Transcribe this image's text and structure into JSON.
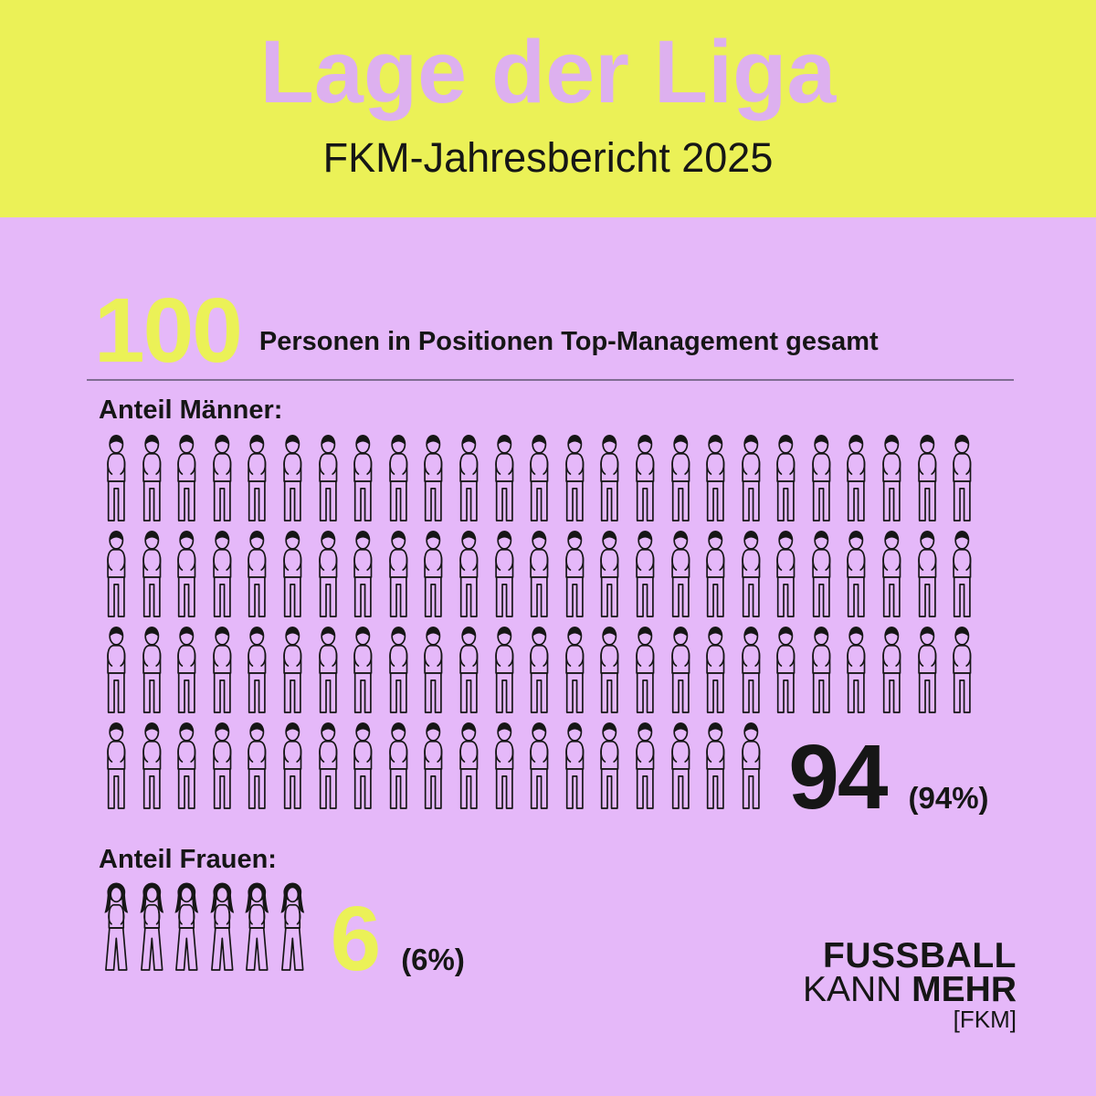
{
  "banner": {
    "title": "Lage der Liga",
    "subtitle": "FKM-Jahresbericht 2025"
  },
  "colors": {
    "banner_yellow": "#EBF157",
    "background_lavender": "#E5B8F9",
    "title_lilac": "#DDB0EF",
    "ink_black": "#161616",
    "divider": "#7F6D92"
  },
  "chart_data": {
    "type": "pictogram",
    "title": "100 Personen in Positionen Top-Management gesamt",
    "total": {
      "value": "100",
      "label": "Personen in Positionen Top-Management gesamt"
    },
    "icons_per_row": 25,
    "series": [
      {
        "name": "Anteil Männer:",
        "count": 94,
        "value_label": "94",
        "percent_label": "(94%)",
        "icon": "man-icon",
        "number_color": "#161616"
      },
      {
        "name": "Anteil Frauen:",
        "count": 6,
        "value_label": "6",
        "percent_label": "(6%)",
        "icon": "woman-icon",
        "number_color": "#EBF157"
      }
    ]
  },
  "logo": {
    "line1": "FUSSBALL",
    "line2_regular": "KANN",
    "line2_bold": "MEHR",
    "line3": "[FKM]"
  }
}
